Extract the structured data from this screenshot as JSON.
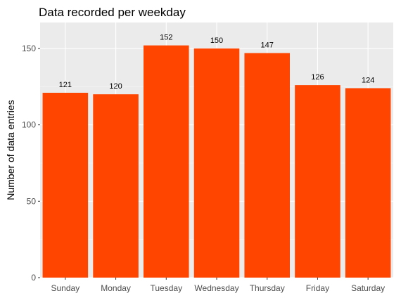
{
  "chart_data": {
    "type": "bar",
    "title": "Data recorded per weekday",
    "xlabel": "",
    "ylabel": "Number of data entries",
    "categories": [
      "Sunday",
      "Monday",
      "Tuesday",
      "Wednesday",
      "Thursday",
      "Friday",
      "Saturday"
    ],
    "values": [
      121,
      120,
      152,
      150,
      147,
      126,
      124
    ],
    "value_labels": [
      "121",
      "120",
      "152",
      "150",
      "147",
      "126",
      "124"
    ],
    "ylim": [
      0,
      167
    ],
    "yticks": [
      0,
      50,
      100,
      150
    ],
    "ytick_labels": [
      "0",
      "50",
      "100",
      "150"
    ],
    "grid": true,
    "legend": "none",
    "colors": {
      "bar": "#FF4500",
      "panel": "#EBEBEB",
      "grid_major": "#FFFFFF",
      "grid_minor": "#F5F5F5",
      "tick_text": "#4D4D4D",
      "tick_mark": "#333333"
    }
  }
}
